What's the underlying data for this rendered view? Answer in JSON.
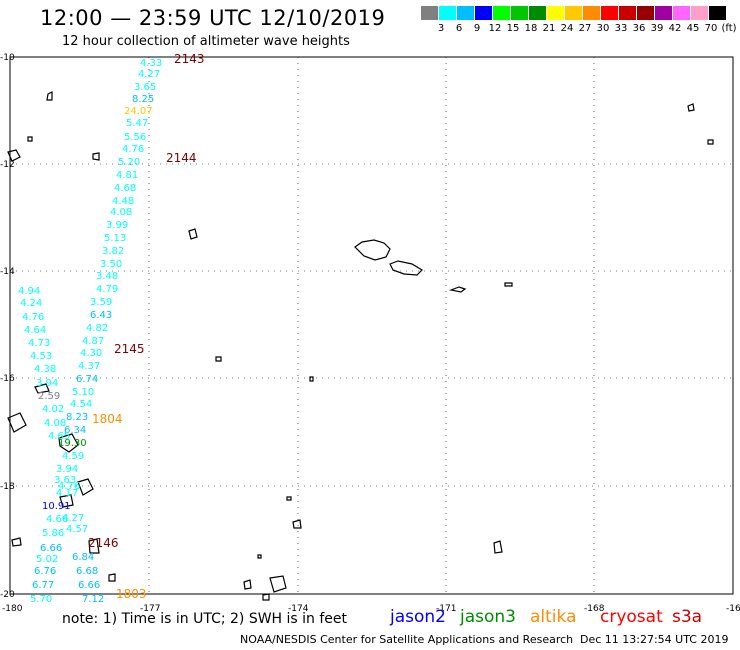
{
  "header": {
    "title": "12:00 — 23:59 UTC 12/10/2019",
    "subtitle": "12 hour collection of altimeter wave heights"
  },
  "colorbar": {
    "colors": [
      "#808080",
      "#00ffff",
      "#00bfff",
      "#0000ff",
      "#00ff00",
      "#00c800",
      "#008c00",
      "#ffff00",
      "#ffc800",
      "#ff8c00",
      "#ff0000",
      "#c80000",
      "#960000",
      "#a000a0",
      "#ff64ff",
      "#ff9ec8",
      "#000000"
    ],
    "labels": [
      "3",
      "6",
      "9",
      "12",
      "15",
      "18",
      "21",
      "24",
      "27",
      "30",
      "33",
      "36",
      "39",
      "42",
      "45",
      "70",
      "(ft)"
    ]
  },
  "axes": {
    "x_ticks": [
      "-180",
      "-177",
      "-174",
      "-171",
      "-168",
      "-16"
    ],
    "y_ticks": [
      "-10",
      "-12",
      "-14",
      "-16",
      "-18",
      "-20"
    ]
  },
  "passes": [
    {
      "id": "2143",
      "color": "#800000"
    },
    {
      "id": "2144",
      "color": "#800000"
    },
    {
      "id": "2145",
      "color": "#800000"
    },
    {
      "id": "1804",
      "color": "#ff8c00"
    },
    {
      "id": "2146",
      "color": "#800000"
    },
    {
      "id": "1803",
      "color": "#ff8c00"
    }
  ],
  "readings": [
    {
      "text": "4.33",
      "color": "#00ffff"
    },
    {
      "text": "4.27",
      "color": "#00ffff"
    },
    {
      "text": "3.65",
      "color": "#00ffff"
    },
    {
      "text": "8.25",
      "color": "#00bfff"
    },
    {
      "text": "24.07",
      "color": "#ffc800"
    },
    {
      "text": "5.47",
      "color": "#00ffff"
    },
    {
      "text": "5.56",
      "color": "#00ffff"
    },
    {
      "text": "4.76",
      "color": "#00ffff"
    },
    {
      "text": "5.20",
      "color": "#00ffff"
    },
    {
      "text": "4.81",
      "color": "#00ffff"
    },
    {
      "text": "4.68",
      "color": "#00ffff"
    },
    {
      "text": "4.48",
      "color": "#00ffff"
    },
    {
      "text": "4.08",
      "color": "#00ffff"
    },
    {
      "text": "3.99",
      "color": "#00ffff"
    },
    {
      "text": "5.13",
      "color": "#00ffff"
    },
    {
      "text": "3.82",
      "color": "#00ffff"
    },
    {
      "text": "3.50",
      "color": "#00ffff"
    },
    {
      "text": "3.48",
      "color": "#00ffff"
    },
    {
      "text": "4.79",
      "color": "#00ffff"
    },
    {
      "text": "3.59",
      "color": "#00ffff"
    },
    {
      "text": "6.43",
      "color": "#00bfff"
    },
    {
      "text": "4.82",
      "color": "#00ffff"
    },
    {
      "text": "4.87",
      "color": "#00ffff"
    },
    {
      "text": "4.30",
      "color": "#00ffff"
    },
    {
      "text": "4.37",
      "color": "#00ffff"
    },
    {
      "text": "6.74",
      "color": "#00bfff"
    },
    {
      "text": "5.10",
      "color": "#00ffff"
    },
    {
      "text": "4.54",
      "color": "#00ffff"
    },
    {
      "text": "4.94",
      "color": "#00ffff"
    },
    {
      "text": "4.24",
      "color": "#00ffff"
    },
    {
      "text": "4.76",
      "color": "#00ffff"
    },
    {
      "text": "4.64",
      "color": "#00ffff"
    },
    {
      "text": "4.73",
      "color": "#00ffff"
    },
    {
      "text": "4.53",
      "color": "#00ffff"
    },
    {
      "text": "4.38",
      "color": "#00ffff"
    },
    {
      "text": "3.94",
      "color": "#00ffff"
    },
    {
      "text": "2.59",
      "color": "#808080"
    },
    {
      "text": "4.02",
      "color": "#00ffff"
    },
    {
      "text": "8.23",
      "color": "#00bfff"
    },
    {
      "text": "4.08",
      "color": "#00ffff"
    },
    {
      "text": "6.34",
      "color": "#00bfff"
    },
    {
      "text": "4.65",
      "color": "#00ffff"
    },
    {
      "text": "19.30",
      "color": "#008c00"
    },
    {
      "text": "4.59",
      "color": "#00ffff"
    },
    {
      "text": "3.94",
      "color": "#00ffff"
    },
    {
      "text": "3.63",
      "color": "#00ffff"
    },
    {
      "text": "4.17",
      "color": "#00ffff"
    },
    {
      "text": "4.76",
      "color": "#00ffff"
    },
    {
      "text": "4.27",
      "color": "#00ffff"
    },
    {
      "text": "10.91",
      "color": "#0000ff"
    },
    {
      "text": "4.66",
      "color": "#00ffff"
    },
    {
      "text": "4.57",
      "color": "#00ffff"
    },
    {
      "text": "5.86",
      "color": "#00ffff"
    },
    {
      "text": "6.66",
      "color": "#00bfff"
    },
    {
      "text": "5.02",
      "color": "#00ffff"
    },
    {
      "text": "6.84",
      "color": "#00bfff"
    },
    {
      "text": "6.76",
      "color": "#00bfff"
    },
    {
      "text": "6.68",
      "color": "#00bfff"
    },
    {
      "text": "6.77",
      "color": "#00bfff"
    },
    {
      "text": "6.66",
      "color": "#00bfff"
    },
    {
      "text": "5.70",
      "color": "#00ffff"
    },
    {
      "text": "7.12",
      "color": "#00bfff"
    }
  ],
  "footer": {
    "note": "note:  1) Time is in UTC;  2) SWH is in feet",
    "credit": "NOAA/NESDIS Center for Satellite Applications and Research",
    "timestamp": "Dec 11 13:27:54 UTC 2019",
    "satellites": [
      {
        "name": "jason2",
        "color": "#0000ff"
      },
      {
        "name": "jason3",
        "color": "#008c00"
      },
      {
        "name": "altika",
        "color": "#ff8c00"
      },
      {
        "name": "cryosat",
        "color": "#ff0000"
      },
      {
        "name": "s3a",
        "color": "#c80000"
      }
    ]
  }
}
